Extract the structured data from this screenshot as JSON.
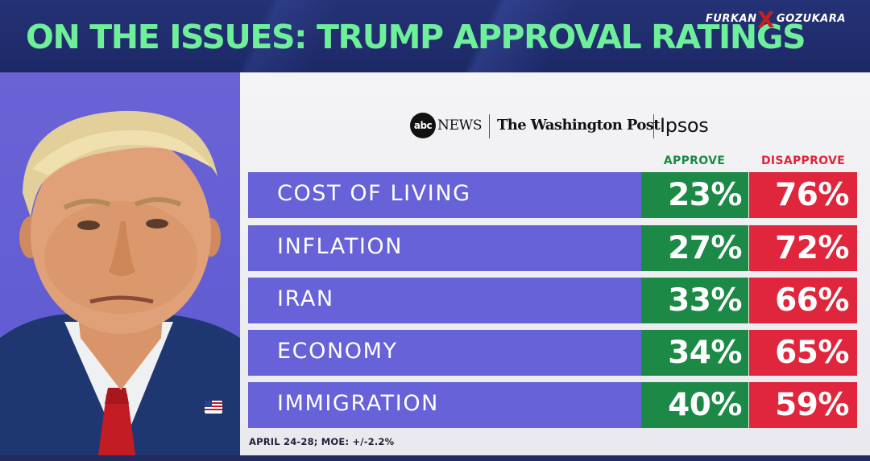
{
  "header": {
    "title": "ON THE ISSUES: TRUMP APPROVAL RATINGS",
    "watermark_left": "FURKAN",
    "watermark_mark": "X",
    "watermark_right": "GOZUKARA"
  },
  "sources": {
    "abc_mark": "abc",
    "abc_news": "NEWS",
    "washington_post": "The Washington Post",
    "ipsos": "Ipsos"
  },
  "columns": {
    "approve": "APPROVE",
    "disapprove": "DISAPPROVE"
  },
  "rows": [
    {
      "issue": "COST OF LIVING",
      "approve": "23%",
      "disapprove": "76%"
    },
    {
      "issue": "INFLATION",
      "approve": "27%",
      "disapprove": "72%"
    },
    {
      "issue": "IRAN",
      "approve": "33%",
      "disapprove": "66%"
    },
    {
      "issue": "ECONOMY",
      "approve": "34%",
      "disapprove": "65%"
    },
    {
      "issue": "IMMIGRATION",
      "approve": "40%",
      "disapprove": "59%"
    }
  ],
  "footnote": "APRIL 24-28; MOE: +/-2.2%",
  "chart_data": {
    "type": "table",
    "title": "ON THE ISSUES: TRUMP APPROVAL RATINGS",
    "columns": [
      "APPROVE",
      "DISAPPROVE"
    ],
    "categories": [
      "COST OF LIVING",
      "INFLATION",
      "IRAN",
      "ECONOMY",
      "IMMIGRATION"
    ],
    "series": [
      {
        "name": "APPROVE",
        "values": [
          23,
          27,
          33,
          34,
          40
        ]
      },
      {
        "name": "DISAPPROVE",
        "values": [
          76,
          72,
          66,
          65,
          59
        ]
      }
    ],
    "unit": "%",
    "colors": {
      "approve": "#1c8a46",
      "disapprove": "#e0263c",
      "issue": "#6762d8",
      "title": "#6ef09a"
    }
  }
}
